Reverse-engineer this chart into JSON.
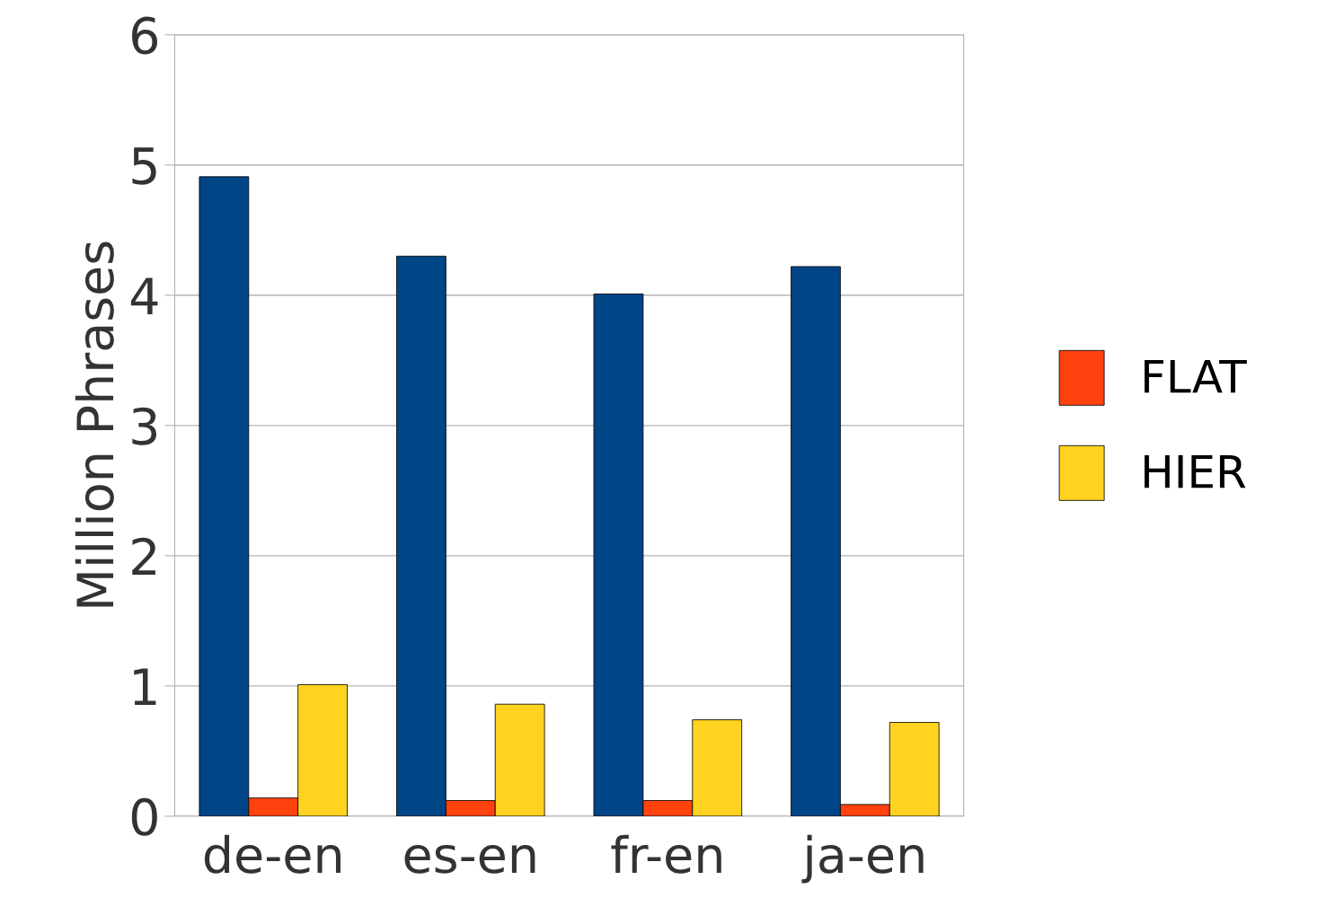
{
  "chart_data": {
    "type": "bar",
    "ylabel": "Million Phrases",
    "categories": [
      "de-en",
      "es-en",
      "fr-en",
      "ja-en"
    ],
    "series": [
      {
        "color": "#004586",
        "values": [
          4.91,
          4.3,
          4.01,
          4.22
        ]
      },
      {
        "name": "FLAT",
        "color": "#ff420e",
        "values": [
          0.14,
          0.12,
          0.12,
          0.09
        ]
      },
      {
        "name": "HIER",
        "color": "#ffd320",
        "values": [
          1.01,
          0.86,
          0.74,
          0.72
        ]
      }
    ],
    "ylim": [
      0,
      6
    ],
    "yticks": [
      0,
      1,
      2,
      3,
      4,
      5,
      6
    ],
    "grid": "y",
    "legend": "right"
  }
}
